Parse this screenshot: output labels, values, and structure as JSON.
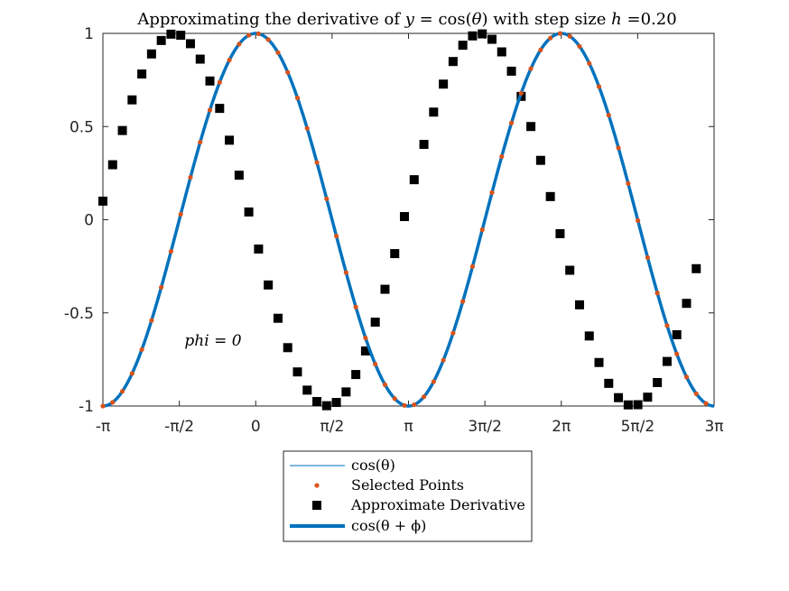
{
  "chart_data": {
    "type": "line",
    "title": "Approximating the derivative of y = cos(θ) with step size h =0.20",
    "xlabel": "",
    "ylabel": "",
    "xlim": [
      -3.14159265,
      9.42477796
    ],
    "ylim": [
      -1,
      1
    ],
    "xticks": [
      -3.14159265,
      -1.57079633,
      0,
      1.57079633,
      3.14159265,
      4.71238898,
      6.28318531,
      7.85398163,
      9.42477796
    ],
    "xtick_labels": [
      "-π",
      "-π/2",
      "0",
      "π/2",
      "π",
      "3π/2",
      "2π",
      "5π/2",
      "3π"
    ],
    "yticks": [
      -1,
      -0.5,
      0,
      0.5,
      1
    ],
    "ytick_labels": [
      "-1",
      "-0.5",
      "0",
      "0.5",
      "1"
    ],
    "grid": false,
    "legend_placement": "below plot, centered",
    "annotation": "phi = 0",
    "h": 0.2,
    "series": [
      {
        "name": "cos(θ)",
        "kind": "line",
        "color": "#0072BD",
        "function": "cos(x)"
      },
      {
        "name": "Selected Points",
        "kind": "markers",
        "marker": "dot",
        "color": "#D95319",
        "x_start": -3.14159265,
        "x_end": 9.42477796,
        "step": 0.2,
        "function": "cos(x)"
      },
      {
        "name": "Approximate Derivative",
        "kind": "markers",
        "marker": "square",
        "color": "#000000",
        "x_start": -3.14159265,
        "x_end": 9.22477796,
        "step": 0.2,
        "function": "(cos(x+h)-cos(x))/h"
      },
      {
        "name": "cos(θ + ϕ)",
        "kind": "line",
        "width": "thick",
        "color": "#0072BD",
        "function": "cos(x+phi)",
        "phi": 0
      }
    ]
  },
  "colors": {
    "cos_line": "#0072BD",
    "selected_points": "#D95319",
    "derivative_markers": "#000000",
    "axes": "#262626"
  }
}
